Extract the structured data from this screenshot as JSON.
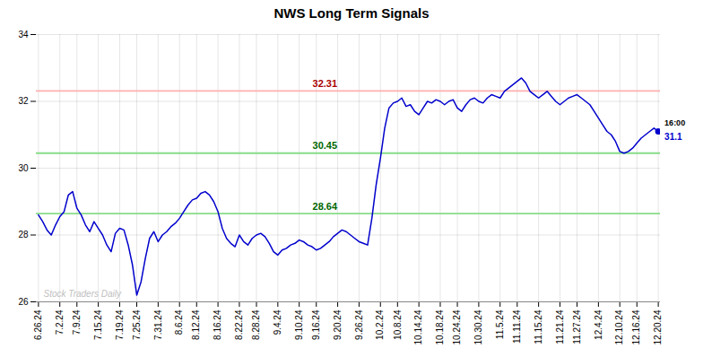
{
  "chart_data": {
    "type": "line",
    "title": "NWS Long Term Signals",
    "color": "#0000CC",
    "grid": true,
    "ylim": [
      26,
      34
    ],
    "yticks": [
      26,
      28,
      30,
      32,
      34
    ],
    "categories": [
      "6.26.24",
      null,
      null,
      null,
      null,
      "7.2.24",
      null,
      null,
      null,
      "7.9.24",
      null,
      null,
      null,
      null,
      "7.15.24",
      null,
      null,
      null,
      null,
      "7.19.24",
      null,
      null,
      null,
      "7.25.24",
      null,
      null,
      null,
      null,
      "7.31.24",
      null,
      null,
      null,
      null,
      "8.6.24",
      null,
      null,
      null,
      "8.12.24",
      null,
      null,
      null,
      null,
      "8.16.24",
      null,
      null,
      null,
      null,
      "8.22.24",
      null,
      null,
      null,
      "8.28.24",
      null,
      null,
      null,
      null,
      "9.4.24",
      null,
      null,
      null,
      null,
      "9.10.24",
      null,
      null,
      null,
      "9.16.24",
      null,
      null,
      null,
      null,
      "9.20.24",
      null,
      null,
      null,
      null,
      "9.26.24",
      null,
      null,
      null,
      null,
      "10.2.24",
      null,
      null,
      null,
      "10.8.24",
      null,
      null,
      null,
      null,
      "10.14.24",
      null,
      null,
      null,
      null,
      "10.18.24",
      null,
      null,
      null,
      "10.24.24",
      null,
      null,
      null,
      null,
      "10.30.24",
      null,
      null,
      null,
      null,
      "11.5.24",
      null,
      null,
      null,
      "11.11.24",
      null,
      null,
      null,
      null,
      "11.15.24",
      null,
      null,
      null,
      null,
      "11.21.24",
      null,
      null,
      null,
      "11.27.24",
      null,
      null,
      null,
      null,
      "12.4.24",
      null,
      null,
      null,
      null,
      "12.10.24",
      null,
      null,
      null,
      "12.16.24",
      null,
      null,
      null,
      null,
      "12.20.24"
    ],
    "values": [
      28.6,
      28.4,
      28.15,
      28.0,
      28.3,
      28.55,
      28.7,
      29.2,
      29.3,
      28.8,
      28.6,
      28.3,
      28.1,
      28.4,
      28.2,
      28.0,
      27.7,
      27.5,
      28.05,
      28.2,
      28.15,
      27.7,
      27.1,
      26.2,
      26.6,
      27.3,
      27.9,
      28.1,
      27.8,
      28.0,
      28.1,
      28.25,
      28.35,
      28.5,
      28.7,
      28.9,
      29.05,
      29.1,
      29.25,
      29.3,
      29.2,
      29.0,
      28.7,
      28.2,
      27.9,
      27.75,
      27.65,
      28.0,
      27.8,
      27.7,
      27.9,
      28.0,
      28.05,
      27.95,
      27.75,
      27.5,
      27.4,
      27.55,
      27.6,
      27.7,
      27.75,
      27.85,
      27.8,
      27.7,
      27.65,
      27.55,
      27.6,
      27.7,
      27.8,
      27.95,
      28.05,
      28.15,
      28.1,
      28.0,
      27.9,
      27.8,
      27.75,
      27.7,
      28.5,
      29.5,
      30.3,
      31.2,
      31.8,
      31.95,
      32.0,
      32.1,
      31.85,
      31.9,
      31.7,
      31.6,
      31.8,
      32.0,
      31.95,
      32.05,
      32.0,
      31.9,
      32.0,
      32.05,
      31.8,
      31.7,
      31.9,
      32.05,
      32.1,
      32.0,
      31.95,
      32.1,
      32.2,
      32.15,
      32.1,
      32.3,
      32.4,
      32.5,
      32.6,
      32.7,
      32.55,
      32.3,
      32.2,
      32.1,
      32.2,
      32.3,
      32.15,
      32.0,
      31.9,
      32.0,
      32.1,
      32.15,
      32.2,
      32.1,
      32.0,
      31.9,
      31.7,
      31.5,
      31.3,
      31.1,
      31.0,
      30.8,
      30.5,
      30.45,
      30.5,
      30.6,
      30.75,
      30.9,
      31.0,
      31.1,
      31.2,
      31.1
    ],
    "annotations": [
      {
        "type": "hline",
        "y": 32.31,
        "label": "32.31",
        "color": "#ffb0b0",
        "label_color": "#aa0000"
      },
      {
        "type": "hline",
        "y": 30.45,
        "label": "30.45",
        "color": "#88dd88",
        "label_color": "#006600"
      },
      {
        "type": "hline",
        "y": 28.64,
        "label": "28.64",
        "color": "#88dd88",
        "label_color": "#006600"
      },
      {
        "type": "end_label",
        "text": "16:00"
      },
      {
        "type": "end_value",
        "text": "31.1",
        "color": "#0000CC"
      },
      {
        "type": "watermark",
        "text": "Stock Traders Daily",
        "color": "#c0c0c0"
      }
    ]
  }
}
